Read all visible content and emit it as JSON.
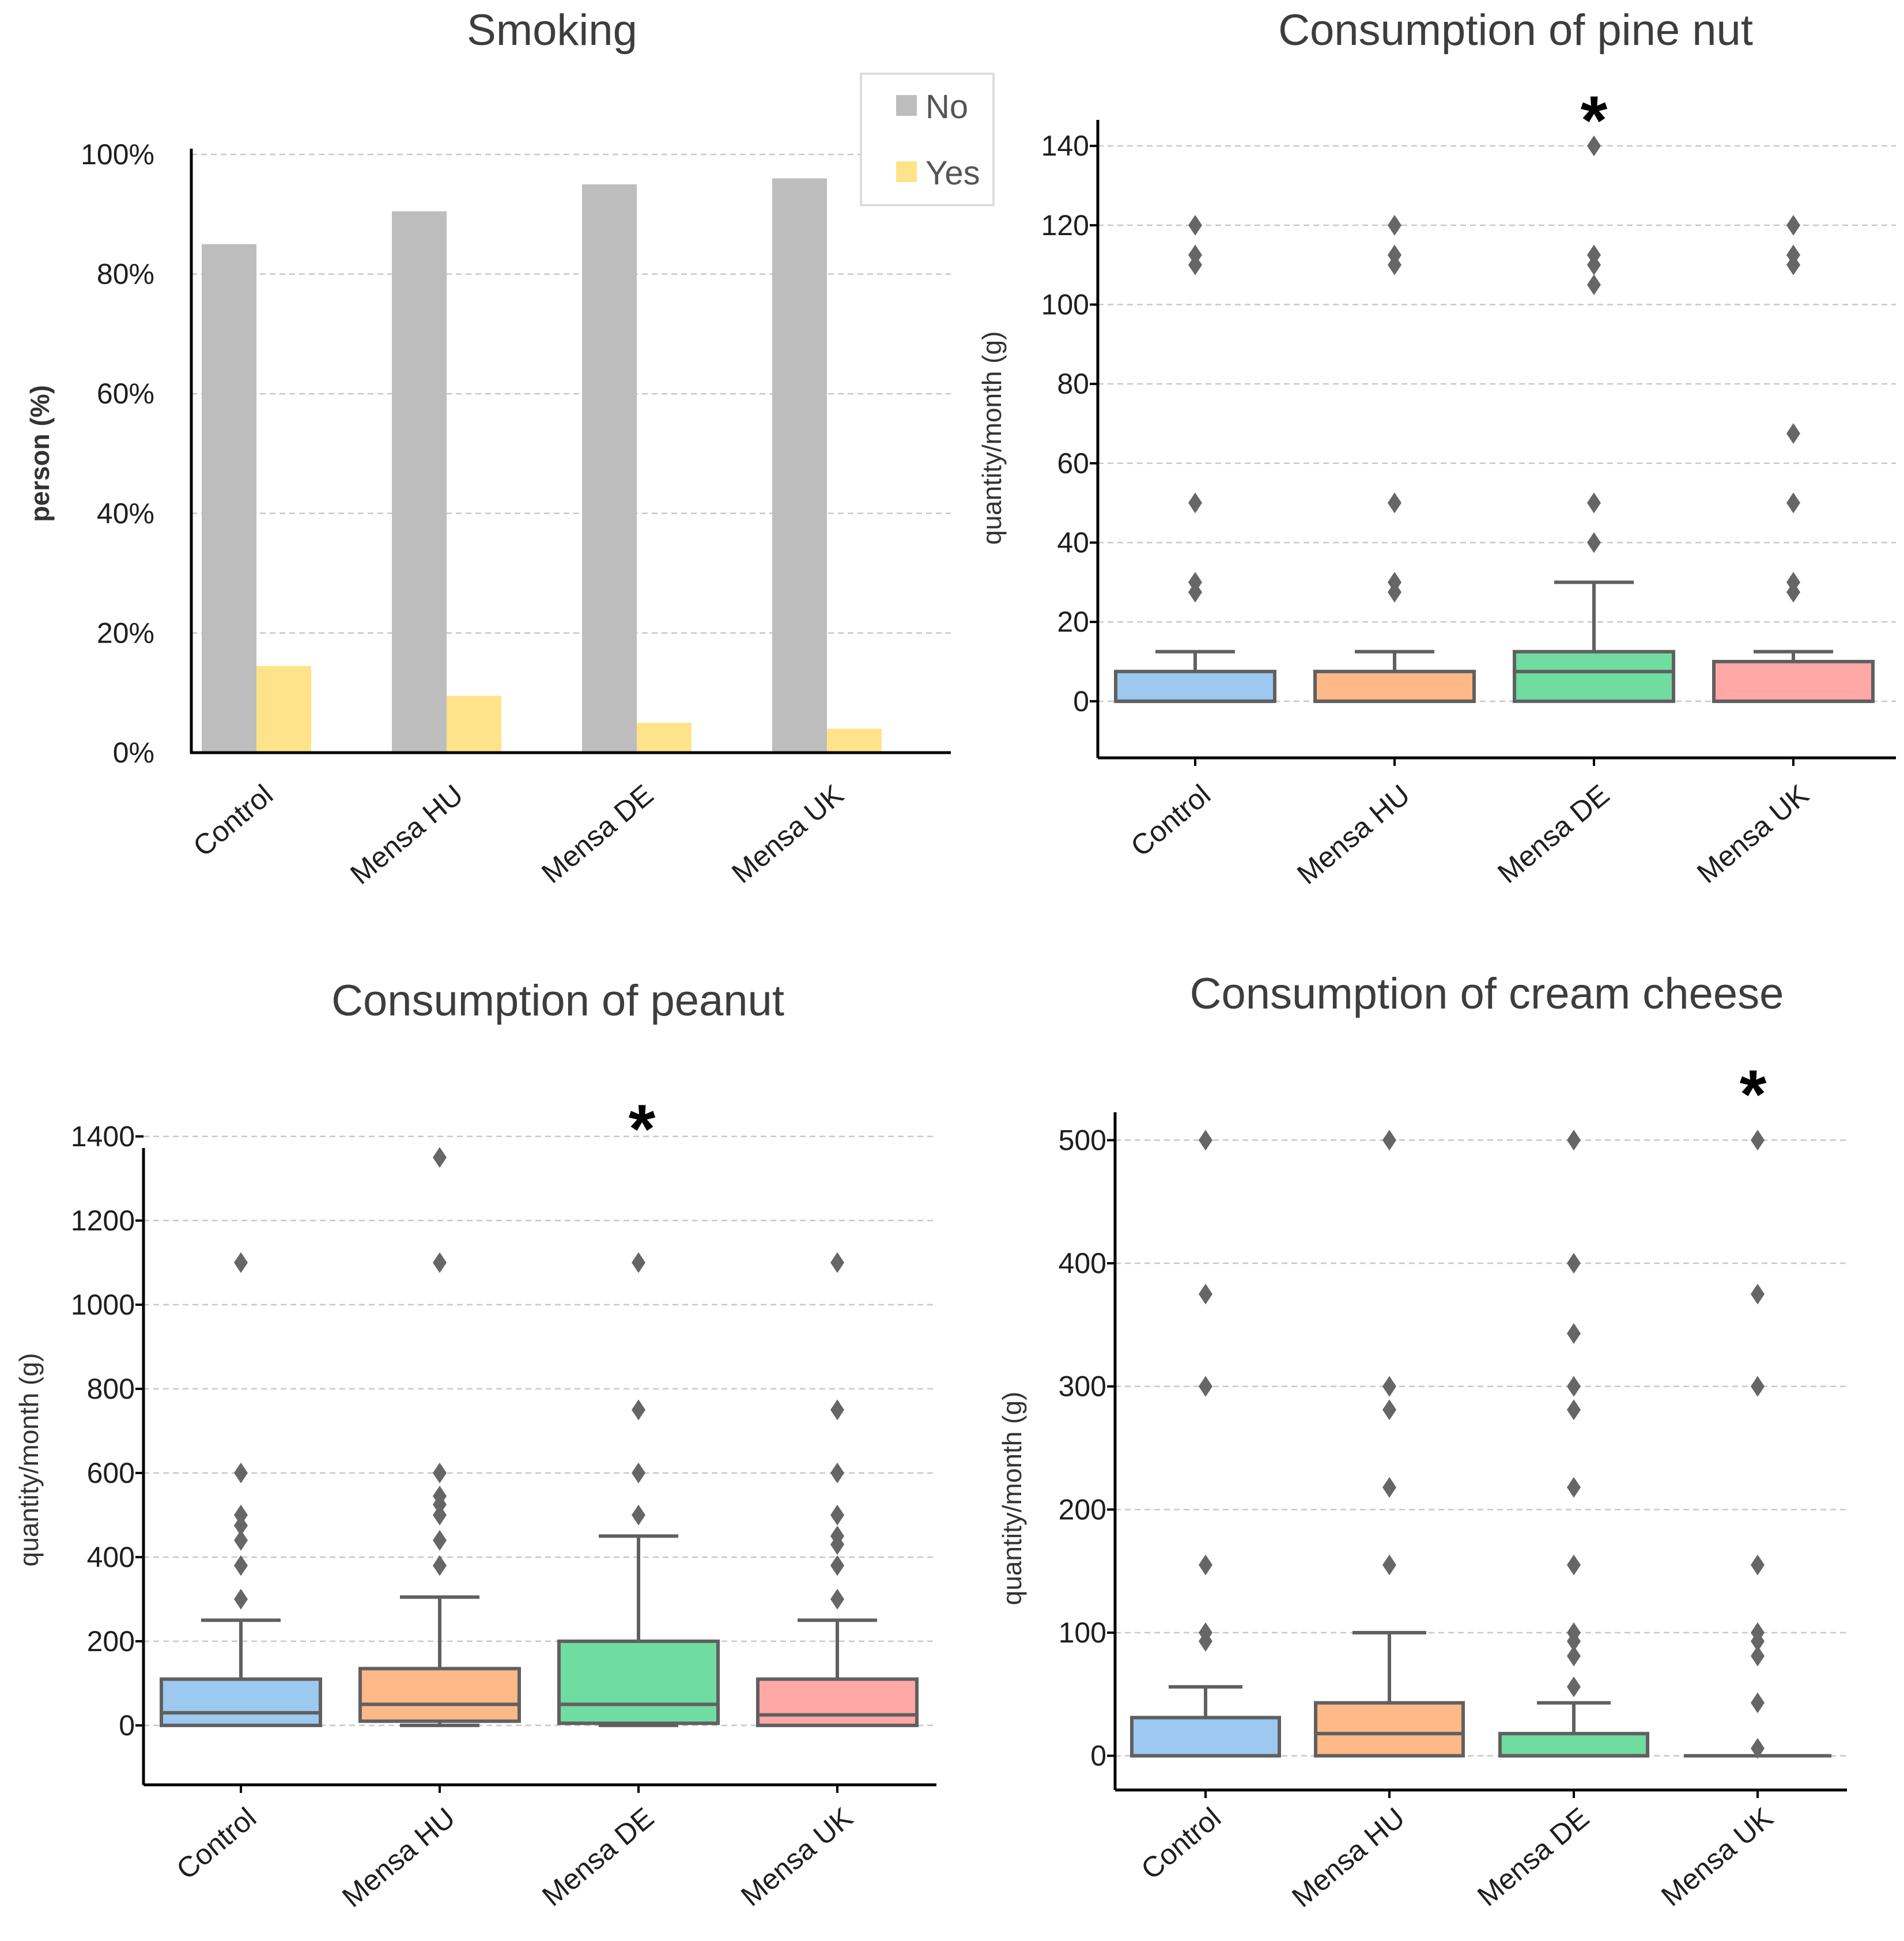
{
  "chart_data": [
    {
      "type": "bar",
      "title": "Smoking",
      "xlabel": "",
      "ylabel": "person (%)",
      "categories": [
        "Control",
        "Mensa HU",
        "Mensa DE",
        "Mensa UK"
      ],
      "series": [
        {
          "name": "No",
          "color": "#bdbdbd",
          "values": [
            85,
            90.5,
            95,
            96
          ]
        },
        {
          "name": "Yes",
          "color": "#ffe38a",
          "values": [
            14.5,
            9.5,
            5,
            4
          ]
        }
      ],
      "ylim": [
        0,
        100
      ],
      "yticks": [
        0,
        20,
        40,
        60,
        80,
        100
      ],
      "ytick_labels": [
        "0%",
        "20%",
        "40%",
        "60%",
        "80%",
        "100%"
      ],
      "grid": true,
      "legend": "top-right"
    },
    {
      "type": "box",
      "title": "Consumption of pine nut",
      "xlabel": "",
      "ylabel": "quantity/month (g)",
      "categories": [
        "Control",
        "Mensa HU",
        "Mensa DE",
        "Mensa UK"
      ],
      "colors": [
        "#9dc8ef",
        "#ffb888",
        "#6fdca0",
        "#ffa8a6"
      ],
      "ylim": [
        -7,
        147
      ],
      "yticks": [
        0,
        20,
        40,
        60,
        80,
        100,
        120,
        140
      ],
      "grid": true,
      "significant": "Mensa DE",
      "significance_marker": "*",
      "boxes": [
        {
          "q1": 0,
          "median": 0,
          "q3": 7.5,
          "whislo": 0,
          "whishi": 12.5,
          "fliers": [
            27.5,
            30,
            50,
            110,
            112.5,
            120
          ]
        },
        {
          "q1": 0,
          "median": 0,
          "q3": 7.5,
          "whislo": 0,
          "whishi": 12.5,
          "fliers": [
            27.5,
            30,
            50,
            110,
            112.5,
            120
          ]
        },
        {
          "q1": 0,
          "median": 7.5,
          "q3": 12.5,
          "whislo": 0,
          "whishi": 30,
          "fliers": [
            40,
            50,
            105,
            110,
            112.5,
            140
          ]
        },
        {
          "q1": 0,
          "median": 0,
          "q3": 10,
          "whislo": 0,
          "whishi": 12.5,
          "fliers": [
            27.5,
            30,
            50,
            67.5,
            110,
            112.5,
            120
          ]
        }
      ]
    },
    {
      "type": "box",
      "title": "Consumption of peanut",
      "xlabel": "",
      "ylabel": "quantity/month (g)",
      "categories": [
        "Control",
        "Mensa HU",
        "Mensa DE",
        "Mensa UK"
      ],
      "colors": [
        "#9dc8ef",
        "#ffb888",
        "#6fdca0",
        "#ffa8a6"
      ],
      "ylim": [
        -70,
        1430
      ],
      "yticks": [
        0,
        200,
        400,
        600,
        800,
        1000,
        1200,
        1400
      ],
      "grid": true,
      "significant": "Mensa DE",
      "significance_marker": "*",
      "boxes": [
        {
          "q1": 0,
          "median": 30,
          "q3": 110,
          "whislo": 0,
          "whishi": 250,
          "fliers": [
            300,
            380,
            440,
            475,
            500,
            600,
            1100
          ]
        },
        {
          "q1": 10,
          "median": 50,
          "q3": 135,
          "whislo": 0,
          "whishi": 305,
          "fliers": [
            380,
            440,
            500,
            525,
            545,
            600,
            1100,
            1350
          ]
        },
        {
          "q1": 5,
          "median": 50,
          "q3": 200,
          "whislo": 0,
          "whishi": 450,
          "fliers": [
            500,
            600,
            750,
            1100
          ]
        },
        {
          "q1": 0,
          "median": 25,
          "q3": 110,
          "whislo": 0,
          "whishi": 250,
          "fliers": [
            300,
            380,
            430,
            450,
            500,
            600,
            750,
            1100
          ]
        }
      ]
    },
    {
      "type": "box",
      "title": "Consumption of cream cheese",
      "xlabel": "",
      "ylabel": "quantity/month (g)",
      "categories": [
        "Control",
        "Mensa HU",
        "Mensa DE",
        "Mensa UK"
      ],
      "colors": [
        "#9dc8ef",
        "#ffb888",
        "#6fdca0",
        "#ffa8a6"
      ],
      "ylim": [
        -25,
        525
      ],
      "yticks": [
        0,
        100,
        200,
        300,
        400,
        500
      ],
      "grid": true,
      "significant": "Mensa UK",
      "significance_marker": "*",
      "boxes": [
        {
          "q1": 0,
          "median": 0,
          "q3": 31,
          "whislo": 0,
          "whishi": 56,
          "fliers": [
            93,
            100,
            155,
            300,
            375,
            500
          ]
        },
        {
          "q1": 0,
          "median": 18,
          "q3": 43,
          "whislo": 0,
          "whishi": 100,
          "fliers": [
            155,
            218,
            281,
            300,
            500
          ]
        },
        {
          "q1": 0,
          "median": 0,
          "q3": 18,
          "whislo": 0,
          "whishi": 43,
          "fliers": [
            56,
            81,
            93,
            100,
            155,
            218,
            281,
            300,
            343,
            400,
            500
          ]
        },
        {
          "q1": 0,
          "median": 0,
          "q3": 0,
          "whislo": 0,
          "whishi": 0,
          "fliers": [
            6,
            43,
            81,
            93,
            100,
            155,
            300,
            375,
            500
          ]
        }
      ]
    }
  ]
}
